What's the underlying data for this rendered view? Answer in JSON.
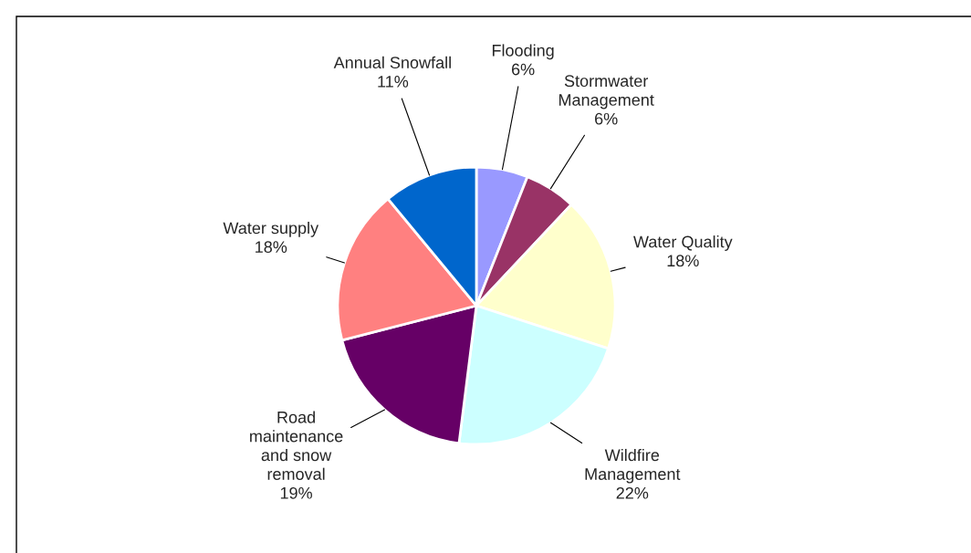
{
  "chart_data": {
    "type": "pie",
    "categories": [
      "Flooding",
      "Stormwater\nManagement",
      "Water Quality",
      "Wildfire\nManagement",
      "Road\nmaintenance\nand snow\nremoval",
      "Water supply",
      "Annual Snowfall"
    ],
    "values": [
      6,
      6,
      18,
      22,
      19,
      18,
      11
    ],
    "colors": [
      "#9999ff",
      "#993366",
      "#ffffcc",
      "#ccffff",
      "#660066",
      "#ff8080",
      "#0066cc"
    ],
    "value_labels": [
      "6%",
      "6%",
      "18%",
      "22%",
      "19%",
      "18%",
      "11%"
    ]
  }
}
